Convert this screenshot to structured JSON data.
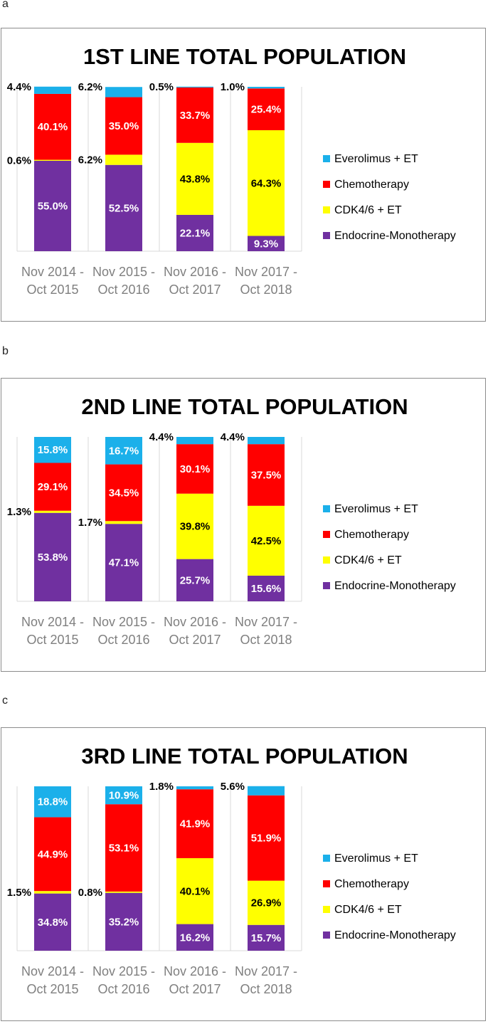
{
  "panel_labels": [
    "a",
    "b",
    "c"
  ],
  "colors": {
    "everolimus": "#1BB0EA",
    "chemotherapy": "#FF0000",
    "cdk46": "#FFFF00",
    "endocrine": "#7030A0",
    "axis_text": "#7f7f7f",
    "grid": "#d9d9d9"
  },
  "chart_data": [
    {
      "type": "bar",
      "stacked": true,
      "title": "1ST LINE TOTAL POPULATION",
      "categories": [
        [
          "Nov 2014 -",
          "Oct 2015"
        ],
        [
          "Nov 2015 -",
          "Oct 2016"
        ],
        [
          "Nov 2016 -",
          "Oct 2017"
        ],
        [
          "Nov 2017 -",
          "Oct 2018"
        ]
      ],
      "ylim": [
        0,
        100
      ],
      "legend_position": "right",
      "series": [
        {
          "name": "Endocrine-Monotherapy",
          "values": [
            55.0,
            52.5,
            22.1,
            9.3
          ],
          "labels": [
            "55.0%",
            "52.5%",
            "22.1%",
            "9.3%"
          ]
        },
        {
          "name": "CDK4/6 + ET",
          "values": [
            0.6,
            6.2,
            43.8,
            64.3
          ],
          "labels": [
            "0.6%",
            "6.2%",
            "43.8%",
            "64.3%"
          ]
        },
        {
          "name": "Chemotherapy",
          "values": [
            40.1,
            35.0,
            33.7,
            25.4
          ],
          "labels": [
            "40.1%",
            "35.0%",
            "33.7%",
            "25.4%"
          ]
        },
        {
          "name": "Everolimus + ET",
          "values": [
            4.4,
            6.2,
            0.5,
            1.0
          ],
          "labels": [
            "4.4%",
            "6.2%",
            "0.5%",
            "1.0%"
          ]
        }
      ]
    },
    {
      "type": "bar",
      "stacked": true,
      "title": "2ND LINE TOTAL POPULATION",
      "categories": [
        [
          "Nov 2014 -",
          "Oct 2015"
        ],
        [
          "Nov 2015 -",
          "Oct 2016"
        ],
        [
          "Nov 2016 -",
          "Oct 2017"
        ],
        [
          "Nov 2017 -",
          "Oct 2018"
        ]
      ],
      "ylim": [
        0,
        100
      ],
      "legend_position": "right",
      "series": [
        {
          "name": "Endocrine-Monotherapy",
          "values": [
            53.8,
            47.1,
            25.7,
            15.6
          ],
          "labels": [
            "53.8%",
            "47.1%",
            "25.7%",
            "15.6%"
          ]
        },
        {
          "name": "CDK4/6 + ET",
          "values": [
            1.3,
            1.7,
            39.8,
            42.5
          ],
          "labels": [
            "1.3%",
            "1.7%",
            "39.8%",
            "42.5%"
          ]
        },
        {
          "name": "Chemotherapy",
          "values": [
            29.1,
            34.5,
            30.1,
            37.5
          ],
          "labels": [
            "29.1%",
            "34.5%",
            "30.1%",
            "37.5%"
          ]
        },
        {
          "name": "Everolimus + ET",
          "values": [
            15.8,
            16.7,
            4.4,
            4.4
          ],
          "labels": [
            "15.8%",
            "16.7%",
            "4.4%",
            "4.4%"
          ]
        }
      ]
    },
    {
      "type": "bar",
      "stacked": true,
      "title": "3RD LINE TOTAL POPULATION",
      "categories": [
        [
          "Nov 2014 -",
          "Oct 2015"
        ],
        [
          "Nov 2015 -",
          "Oct 2016"
        ],
        [
          "Nov 2016 -",
          "Oct 2017"
        ],
        [
          "Nov 2017 -",
          "Oct 2018"
        ]
      ],
      "ylim": [
        0,
        100
      ],
      "legend_position": "right",
      "series": [
        {
          "name": "Endocrine-Monotherapy",
          "values": [
            34.8,
            35.2,
            16.2,
            15.7
          ],
          "labels": [
            "34.8%",
            "35.2%",
            "16.2%",
            "15.7%"
          ]
        },
        {
          "name": "CDK4/6 + ET",
          "values": [
            1.5,
            0.8,
            40.1,
            26.9
          ],
          "labels": [
            "1.5%",
            "0.8%",
            "40.1%",
            "26.9%"
          ]
        },
        {
          "name": "Chemotherapy",
          "values": [
            44.9,
            53.1,
            41.9,
            51.9
          ],
          "labels": [
            "44.9%",
            "53.1%",
            "41.9%",
            "51.9%"
          ]
        },
        {
          "name": "Everolimus + ET",
          "values": [
            18.8,
            10.9,
            1.8,
            5.6
          ],
          "labels": [
            "18.8%",
            "10.9%",
            "1.8%",
            "5.6%"
          ]
        }
      ]
    }
  ]
}
